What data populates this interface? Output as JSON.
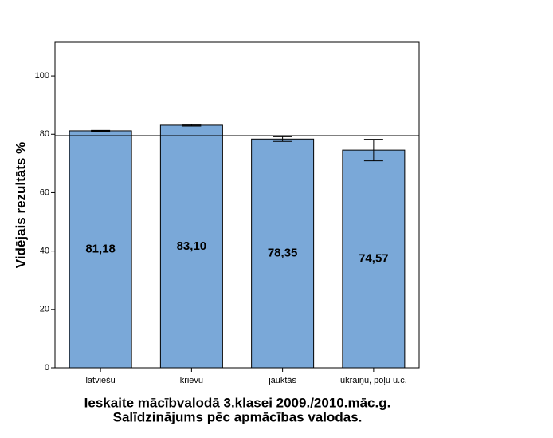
{
  "chart_data": {
    "type": "bar",
    "title": "Ieskaite mācībvalodā 3.klasei 2009./2010.māc.g.",
    "subtitle": "Salīdzinājums pēc apmācības valodas.",
    "y_label": "Vidējais rezultāts %",
    "categories": [
      "latviešu",
      "krievu",
      "jauktās",
      "ukraiņu, poļu u.c."
    ],
    "values": [
      81.18,
      83.1,
      78.35,
      74.57
    ],
    "value_labels": [
      "81,18",
      "83,10",
      "78,35",
      "74,57"
    ],
    "errors": [
      0.15,
      0.3,
      0.8,
      3.7
    ],
    "reference_line": 79.5,
    "color": "#7aa8d8",
    "ylim": [
      0,
      111.5
    ],
    "yticks": [
      0,
      20,
      40,
      60,
      80,
      100
    ]
  }
}
